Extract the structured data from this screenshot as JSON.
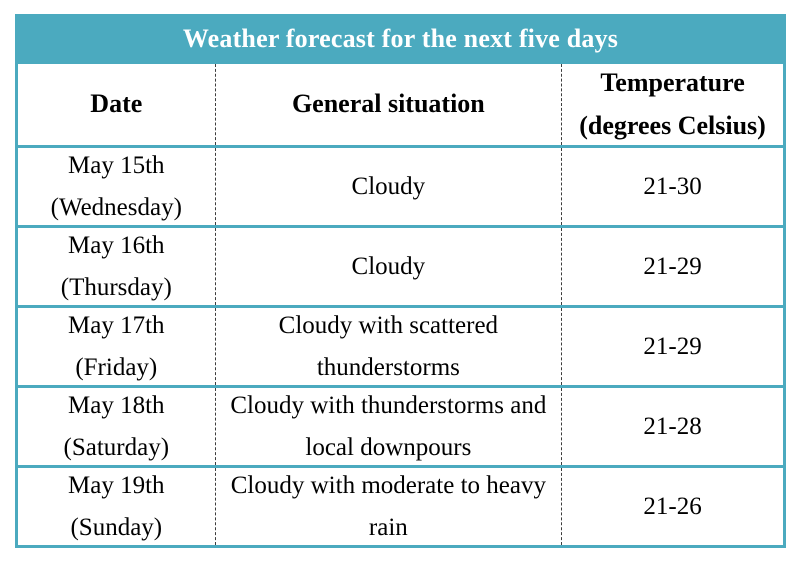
{
  "colors": {
    "accent_teal": "#4baabf",
    "title_text": "#ffffff",
    "body_text": "#000000",
    "column_divider": "#3d3d3d"
  },
  "table": {
    "title": "Weather forecast for the next five days",
    "columns": [
      {
        "title": "Date"
      },
      {
        "title": "General situation"
      },
      {
        "title": "Temperature",
        "subtitle": "(degrees Celsius)"
      }
    ],
    "rows": [
      {
        "date": "May 15th",
        "day": "(Wednesday)",
        "situation": "Cloudy",
        "temperature": "21-30"
      },
      {
        "date": "May 16th",
        "day": "(Thursday)",
        "situation": "Cloudy",
        "temperature": "21-29"
      },
      {
        "date": "May 17th",
        "day": "(Friday)",
        "situation": "Cloudy with scattered thunderstorms",
        "temperature": "21-29"
      },
      {
        "date": "May 18th",
        "day": "(Saturday)",
        "situation": "Cloudy with thunderstorms and local downpours",
        "temperature": "21-28"
      },
      {
        "date": "May 19th",
        "day": "(Sunday)",
        "situation": "Cloudy with moderate to heavy rain",
        "temperature": "21-26"
      }
    ]
  }
}
